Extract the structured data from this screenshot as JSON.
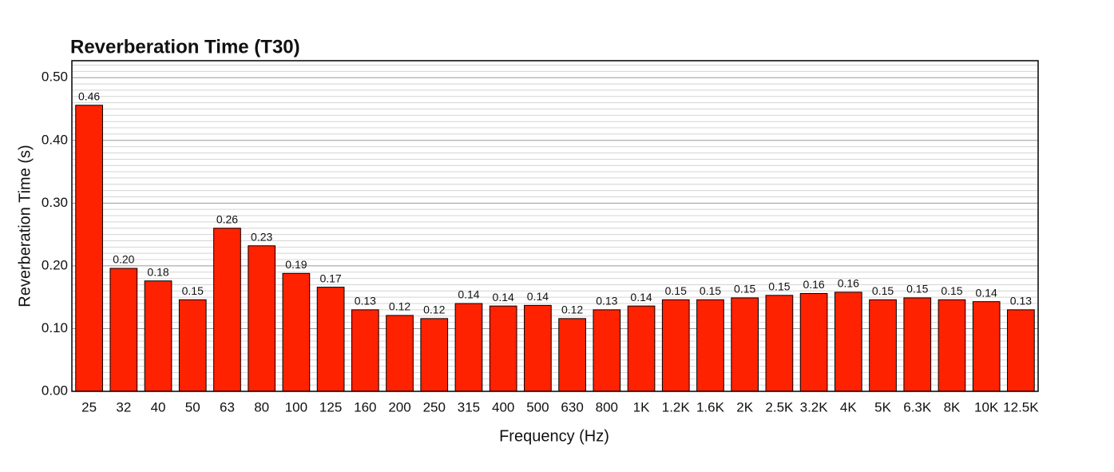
{
  "chart_data": {
    "type": "bar",
    "title": "Reverberation Time (T30)",
    "x_label": "Frequency (Hz)",
    "y_label": "Reverberation Time (s)",
    "categories": [
      "25",
      "32",
      "40",
      "50",
      "63",
      "80",
      "100",
      "125",
      "160",
      "200",
      "250",
      "315",
      "400",
      "500",
      "630",
      "800",
      "1K",
      "1.2K",
      "1.6K",
      "2K",
      "2.5K",
      "3.2K",
      "4K",
      "5K",
      "6.3K",
      "8K",
      "10K",
      "12.5K"
    ],
    "values": [
      0.456,
      0.196,
      0.176,
      0.146,
      0.26,
      0.232,
      0.188,
      0.166,
      0.13,
      0.121,
      0.116,
      0.14,
      0.136,
      0.137,
      0.116,
      0.13,
      0.136,
      0.146,
      0.146,
      0.149,
      0.153,
      0.156,
      0.158,
      0.146,
      0.149,
      0.146,
      0.143,
      0.13
    ],
    "value_labels": [
      "0.46",
      "0.20",
      "0.18",
      "0.15",
      "0.26",
      "0.23",
      "0.19",
      "0.17",
      "0.13",
      "0.12",
      "0.12",
      "0.14",
      "0.14",
      "0.14",
      "0.12",
      "0.13",
      "0.14",
      "0.15",
      "0.15",
      "0.15",
      "0.15",
      "0.16",
      "0.16",
      "0.15",
      "0.15",
      "0.15",
      "0.14",
      "0.13"
    ],
    "color": "#ff2200",
    "ylim": [
      0,
      0.527
    ],
    "yticks": [
      {
        "value": 0,
        "label": "0.00"
      },
      {
        "value": 0.1,
        "label": "0.10"
      },
      {
        "value": 0.2,
        "label": "0.20"
      },
      {
        "value": 0.3,
        "label": "0.30"
      },
      {
        "value": 0.4,
        "label": "0.40"
      },
      {
        "value": 0.5,
        "label": "0.50"
      }
    ],
    "minor_yticks": [
      0.01,
      0.02,
      0.03,
      0.04,
      0.05,
      0.06,
      0.07,
      0.08,
      0.09,
      0.11,
      0.12,
      0.13,
      0.14,
      0.15,
      0.16,
      0.17,
      0.18,
      0.19,
      0.21,
      0.22,
      0.23,
      0.24,
      0.25,
      0.26,
      0.27,
      0.28,
      0.29,
      0.31,
      0.32,
      0.33,
      0.34,
      0.35,
      0.36,
      0.37,
      0.38,
      0.39,
      0.41,
      0.42,
      0.43,
      0.44,
      0.45,
      0.46,
      0.47,
      0.48,
      0.49,
      0.51,
      0.52
    ],
    "grid": true
  }
}
